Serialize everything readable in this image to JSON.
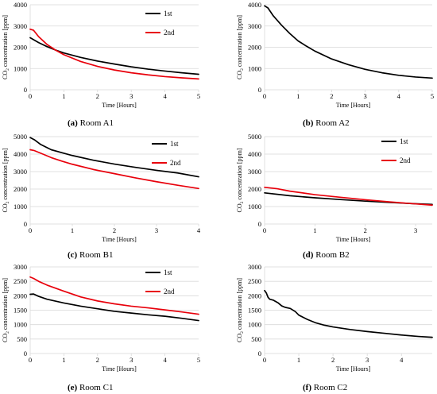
{
  "chart_data": [
    {
      "type": "line",
      "caption_letter": "(a)",
      "caption_text": " Room A1",
      "xlabel": "Time [Hours]",
      "ylabel_pre": "CO",
      "ylabel_sub": "2",
      "ylabel_post": " concentration  [ppm]",
      "xlim": [
        0,
        5
      ],
      "ylim": [
        0,
        4000
      ],
      "xticks": [
        0,
        1,
        2,
        3,
        4,
        5
      ],
      "yticks": [
        0,
        1000,
        2000,
        3000,
        4000
      ],
      "legend": "top-right",
      "grid": true,
      "series": [
        {
          "name": "1st",
          "color": "#000000",
          "x": [
            0,
            0.25,
            0.5,
            0.75,
            1,
            1.5,
            2,
            2.5,
            3,
            3.5,
            4,
            4.5,
            5
          ],
          "y": [
            2450,
            2220,
            2030,
            1870,
            1730,
            1520,
            1350,
            1210,
            1080,
            970,
            880,
            800,
            730
          ]
        },
        {
          "name": "2nd",
          "color": "#e8000b",
          "x": [
            0,
            0.1,
            0.25,
            0.5,
            0.75,
            1,
            1.5,
            2,
            2.5,
            3,
            3.5,
            4,
            4.5,
            5
          ],
          "y": [
            2850,
            2800,
            2500,
            2130,
            1870,
            1650,
            1330,
            1100,
            930,
            800,
            700,
            620,
            560,
            510
          ]
        }
      ]
    },
    {
      "type": "line",
      "caption_letter": "(b)",
      "caption_text": " Room A2",
      "xlabel": "Time [Hours]",
      "ylabel_pre": "CO",
      "ylabel_sub": "2",
      "ylabel_post": " concentration  [ppm]",
      "xlim": [
        0,
        5
      ],
      "ylim": [
        0,
        4000
      ],
      "xticks": [
        0,
        1,
        2,
        3,
        4,
        5
      ],
      "yticks": [
        0,
        1000,
        2000,
        3000,
        4000
      ],
      "legend": "none",
      "grid": true,
      "series": [
        {
          "name": "",
          "color": "#000000",
          "x": [
            0,
            0.1,
            0.25,
            0.5,
            0.75,
            1,
            1.25,
            1.5,
            2,
            2.5,
            3,
            3.5,
            4,
            4.5,
            5
          ],
          "y": [
            3950,
            3850,
            3500,
            3050,
            2650,
            2300,
            2050,
            1820,
            1450,
            1180,
            960,
            800,
            680,
            600,
            550
          ]
        }
      ]
    },
    {
      "type": "line",
      "caption_letter": "(c)",
      "caption_text": " Room B1",
      "xlabel": "Time [Hours]",
      "ylabel_pre": "CO",
      "ylabel_sub": "2",
      "ylabel_post": " concentration  [ppm]",
      "xlim": [
        0,
        4
      ],
      "ylim": [
        0,
        5000
      ],
      "xticks": [
        0,
        1,
        2,
        3,
        4
      ],
      "yticks": [
        0,
        1000,
        2000,
        3000,
        4000,
        5000
      ],
      "legend": "top-right",
      "grid": true,
      "series": [
        {
          "name": "1st",
          "color": "#000000",
          "x": [
            0,
            0.1,
            0.25,
            0.5,
            0.75,
            1,
            1.5,
            2,
            2.5,
            3,
            3.5,
            4
          ],
          "y": [
            4950,
            4820,
            4550,
            4250,
            4080,
            3920,
            3650,
            3430,
            3240,
            3070,
            2920,
            2700
          ]
        },
        {
          "name": "2nd",
          "color": "#e8000b",
          "x": [
            0,
            0.1,
            0.25,
            0.5,
            0.75,
            1,
            1.5,
            2,
            2.5,
            3,
            3.5,
            4
          ],
          "y": [
            4250,
            4200,
            4050,
            3800,
            3600,
            3420,
            3120,
            2880,
            2640,
            2420,
            2220,
            2030
          ]
        }
      ]
    },
    {
      "type": "line",
      "caption_letter": "(d)",
      "caption_text": " Room B2",
      "xlabel": "Time [Hours]",
      "ylabel_pre": "CO",
      "ylabel_sub": "2",
      "ylabel_post": " concentration  [ppm]",
      "xlim": [
        0,
        3.33
      ],
      "ylim": [
        0,
        5000
      ],
      "xticks": [
        0,
        1,
        2,
        3
      ],
      "yticks": [
        0,
        1000,
        2000,
        3000,
        4000,
        5000
      ],
      "legend": "top-right",
      "grid": true,
      "series": [
        {
          "name": "1st",
          "color": "#000000",
          "x": [
            0,
            0.5,
            1,
            1.5,
            2,
            2.5,
            3,
            3.33
          ],
          "y": [
            1780,
            1620,
            1500,
            1400,
            1310,
            1230,
            1160,
            1120
          ]
        },
        {
          "name": "2nd",
          "color": "#e8000b",
          "x": [
            0,
            0.25,
            0.5,
            1,
            1.5,
            2,
            2.5,
            3,
            3.33
          ],
          "y": [
            2100,
            2020,
            1880,
            1680,
            1530,
            1390,
            1260,
            1150,
            1080
          ]
        }
      ]
    },
    {
      "type": "line",
      "caption_letter": "(e)",
      "caption_text": " Room C1",
      "xlabel": "Time [Hours]",
      "ylabel_pre": "CO",
      "ylabel_sub": "2",
      "ylabel_post": " concentration  [ppm]",
      "xlim": [
        0,
        5
      ],
      "ylim": [
        0,
        3000
      ],
      "xticks": [
        0,
        1,
        2,
        3,
        4,
        5
      ],
      "yticks": [
        0,
        500,
        1000,
        1500,
        2000,
        2500,
        3000
      ],
      "legend": "top-right",
      "grid": true,
      "series": [
        {
          "name": "1st",
          "color": "#000000",
          "x": [
            0,
            0.1,
            0.25,
            0.5,
            1,
            1.5,
            2,
            2.5,
            3,
            3.5,
            4,
            4.5,
            5
          ],
          "y": [
            2050,
            2060,
            1980,
            1880,
            1750,
            1640,
            1550,
            1460,
            1400,
            1340,
            1290,
            1220,
            1140
          ]
        },
        {
          "name": "2nd",
          "color": "#e8000b",
          "x": [
            0,
            0.1,
            0.25,
            0.5,
            1,
            1.5,
            2,
            2.5,
            3,
            3.5,
            4,
            4.5,
            5
          ],
          "y": [
            2650,
            2600,
            2500,
            2370,
            2160,
            1960,
            1820,
            1720,
            1640,
            1580,
            1510,
            1440,
            1360
          ]
        }
      ]
    },
    {
      "type": "line",
      "caption_letter": "(f)",
      "caption_text": " Room C2",
      "xlabel": "Time [Hours]",
      "ylabel_pre": "CO",
      "ylabel_sub": "2",
      "ylabel_post": " concentration  [ppm]",
      "xlim": [
        0,
        4.9
      ],
      "ylim": [
        0,
        3000
      ],
      "xticks": [
        0,
        1,
        2,
        3,
        4
      ],
      "yticks": [
        0,
        500,
        1000,
        1500,
        2000,
        2500,
        3000
      ],
      "legend": "none",
      "grid": true,
      "series": [
        {
          "name": "",
          "color": "#000000",
          "x": [
            0,
            0.05,
            0.1,
            0.15,
            0.25,
            0.4,
            0.5,
            0.6,
            0.75,
            0.9,
            1,
            1.25,
            1.5,
            1.75,
            2,
            2.5,
            3,
            3.5,
            4,
            4.5,
            4.9
          ],
          "y": [
            2180,
            2100,
            1950,
            1880,
            1850,
            1750,
            1650,
            1600,
            1560,
            1450,
            1330,
            1180,
            1060,
            980,
            920,
            830,
            760,
            700,
            640,
            590,
            560
          ]
        }
      ]
    }
  ]
}
